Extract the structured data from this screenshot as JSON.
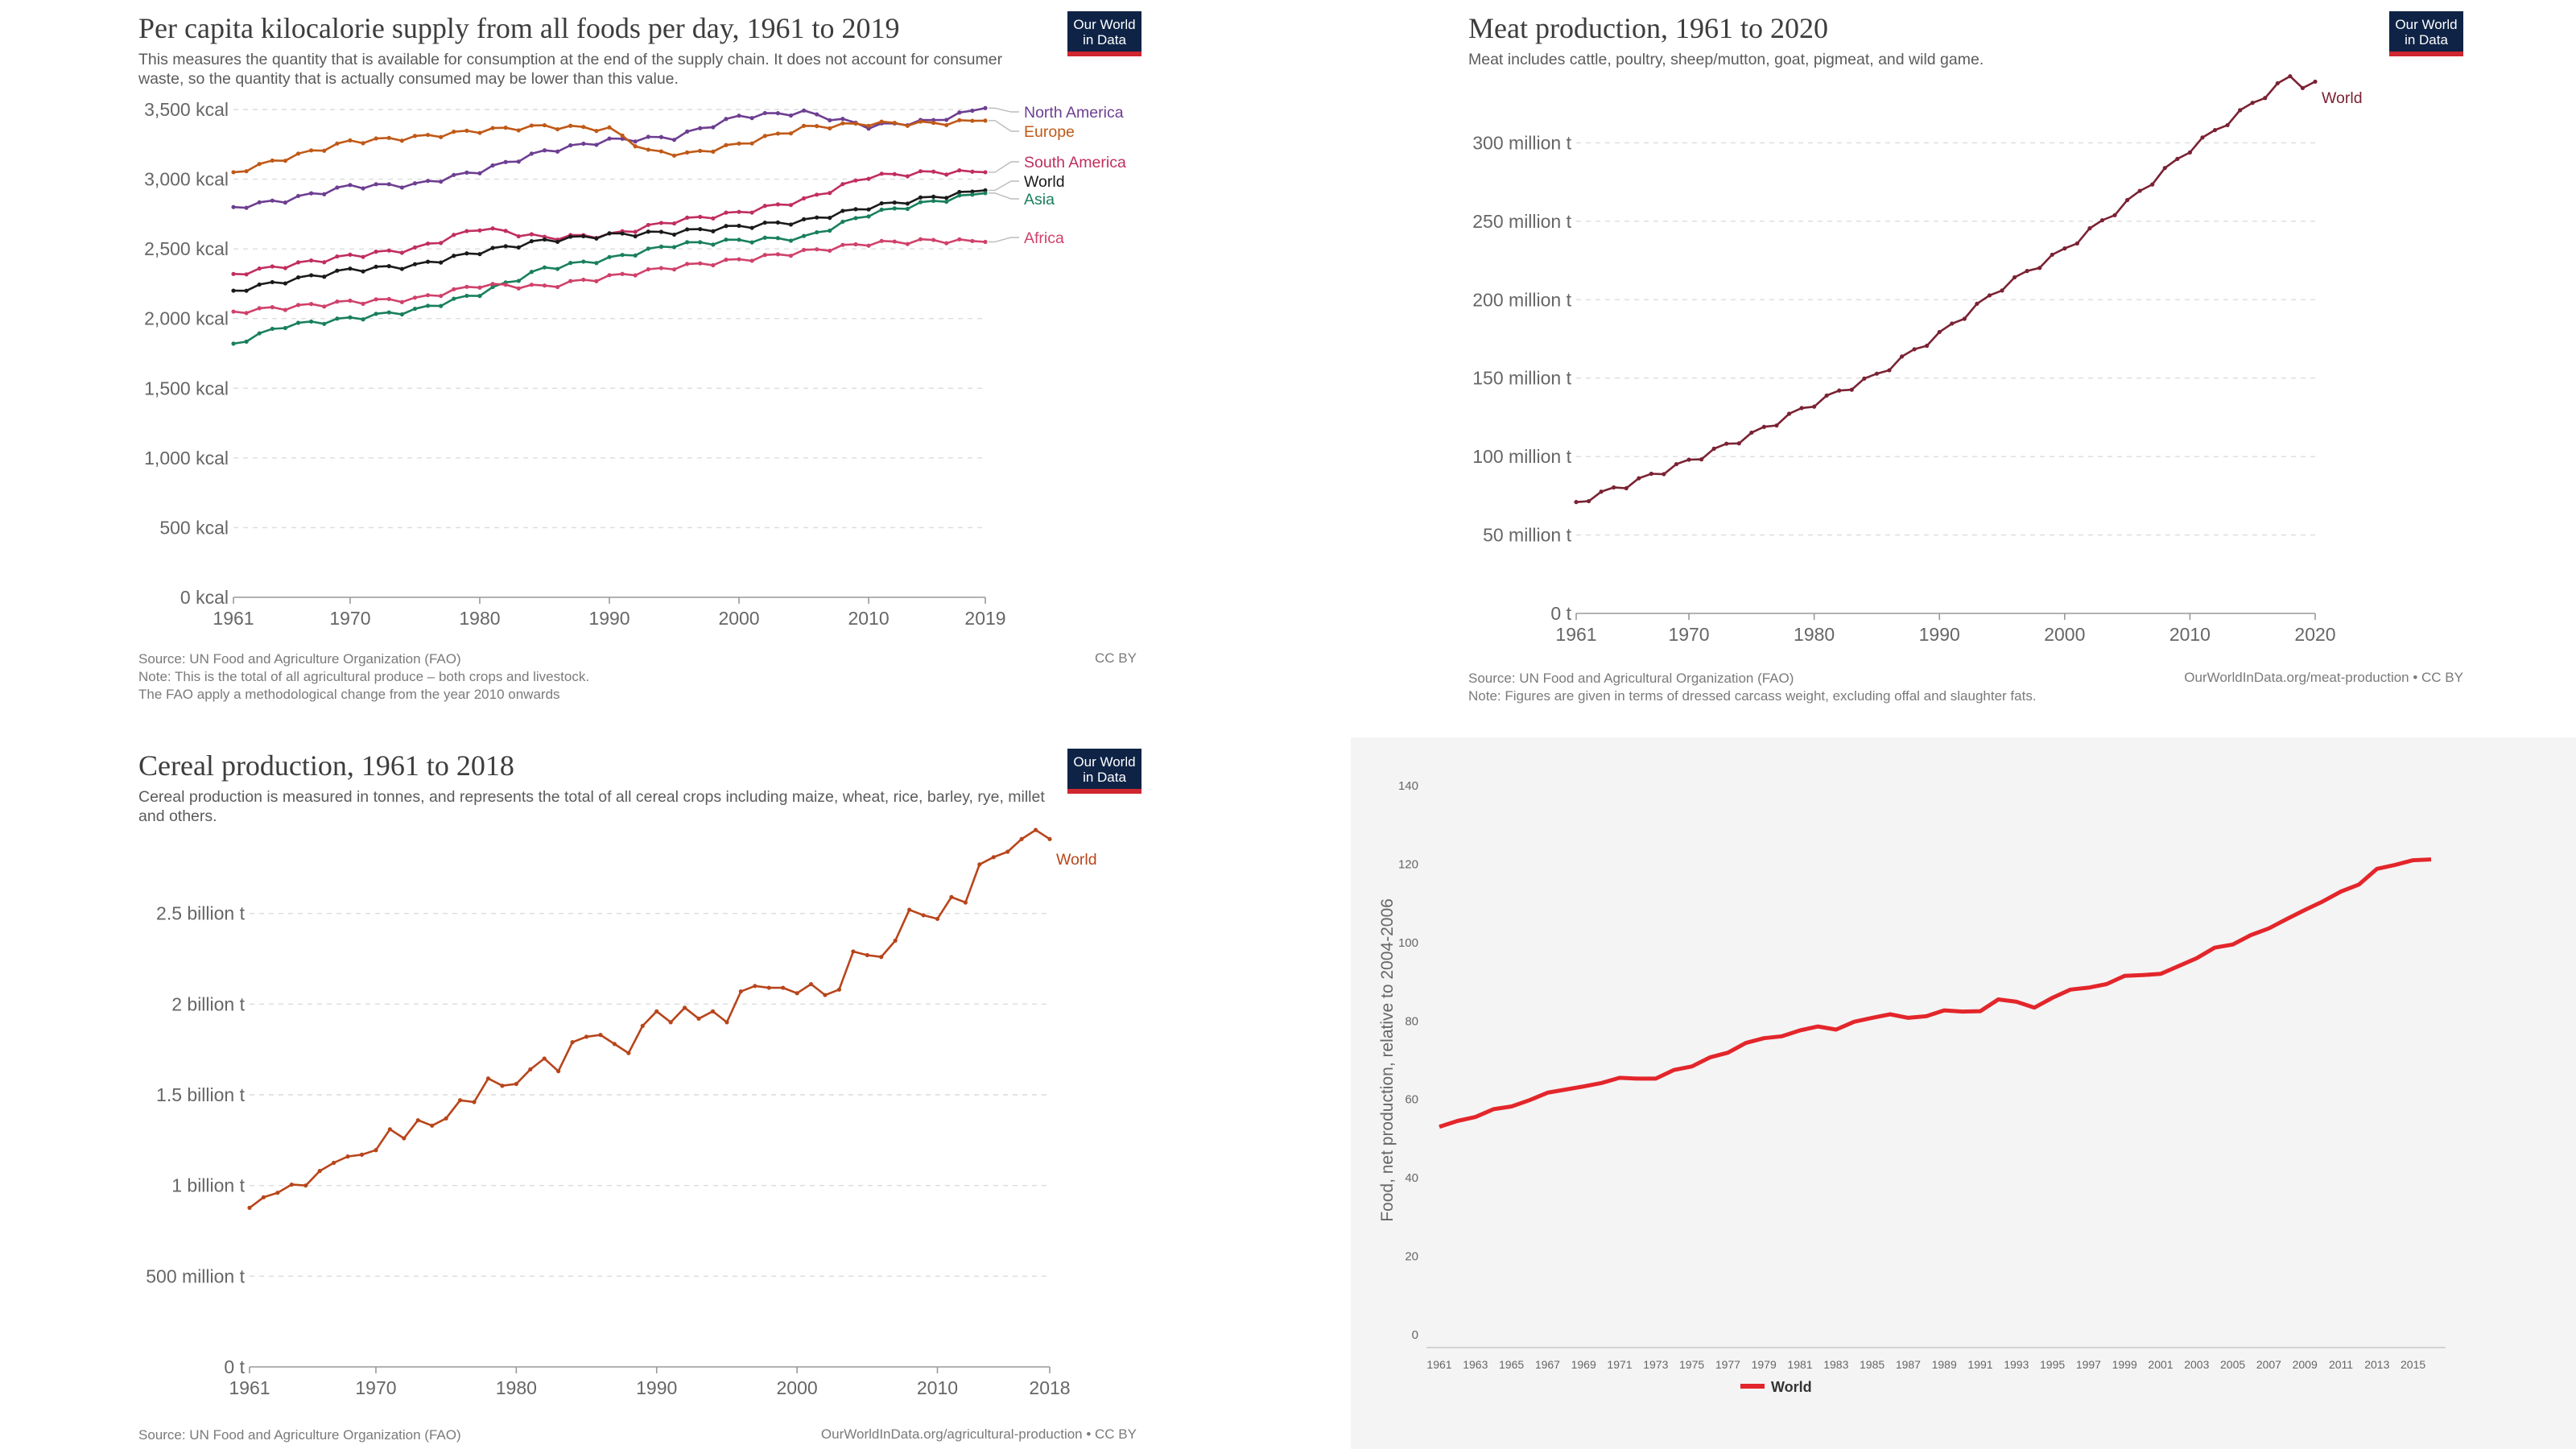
{
  "logo": {
    "line1": "Our World",
    "line2": "in Data"
  },
  "panels": {
    "kcal": {
      "title": "Per capita kilocalorie supply from all foods per day, 1961 to 2019",
      "subtitle": "This measures the quantity that is available for consumption at the end of the supply chain. It does not account for consumer waste, so the quantity that is actually consumed may be lower than this value.",
      "source": "Source: UN Food and Agriculture Organization (FAO)",
      "note1": "Note: This is the total of all agricultural produce – both crops and livestock.",
      "note2": "The FAO apply a methodological change from the year 2010 onwards",
      "license": "CC BY"
    },
    "meat": {
      "title": "Meat production, 1961 to 2020",
      "subtitle": "Meat includes cattle, poultry, sheep/mutton, goat, pigmeat, and wild game.",
      "source": "Source: UN Food and Agricultural Organization (FAO)",
      "note": "Note: Figures are given in terms of dressed carcass weight, excluding offal and slaughter fats.",
      "license": "OurWorldInData.org/meat-production • CC BY"
    },
    "cereal": {
      "title": "Cereal production, 1961 to 2018",
      "subtitle": "Cereal production is measured in tonnes, and represents the total of all cereal crops including maize, wheat, rice, barley, rye, millet and others.",
      "source": "Source: UN Food and Agriculture Organization (FAO)",
      "license": "OurWorldInData.org/agricultural-production • CC BY"
    }
  },
  "chart_data": [
    {
      "id": "kcal",
      "type": "line",
      "title": "Per capita kilocalorie supply from all foods per day, 1961 to 2019",
      "xlim": [
        1961,
        2019
      ],
      "ylim": [
        0,
        3500
      ],
      "x_ticks": [
        1961,
        1970,
        1980,
        1990,
        2000,
        2010,
        2019
      ],
      "y_ticks": [
        0,
        500,
        1000,
        1500,
        2000,
        2500,
        3000,
        3500
      ],
      "y_tick_labels": [
        "0 kcal",
        "500 kcal",
        "1,000 kcal",
        "1,500 kcal",
        "2,000 kcal",
        "2,500 kcal",
        "3,000 kcal",
        "3,500 kcal"
      ],
      "grid": true,
      "legend": "right-of-lines",
      "series": [
        {
          "name": "North America",
          "color": "#6d3e91",
          "anchors": [
            [
              1961,
              2800
            ],
            [
              1965,
              2850
            ],
            [
              1970,
              2950
            ],
            [
              1975,
              2960
            ],
            [
              1980,
              3060
            ],
            [
              1985,
              3200
            ],
            [
              1990,
              3280
            ],
            [
              1995,
              3300
            ],
            [
              2000,
              3450
            ],
            [
              2005,
              3480
            ],
            [
              2010,
              3380
            ],
            [
              2015,
              3420
            ],
            [
              2019,
              3510
            ]
          ]
        },
        {
          "name": "Europe",
          "color": "#c05917",
          "anchors": [
            [
              1961,
              3050
            ],
            [
              1965,
              3150
            ],
            [
              1970,
              3270
            ],
            [
              1975,
              3300
            ],
            [
              1980,
              3350
            ],
            [
              1985,
              3380
            ],
            [
              1990,
              3360
            ],
            [
              1993,
              3200
            ],
            [
              1996,
              3180
            ],
            [
              2000,
              3250
            ],
            [
              2005,
              3370
            ],
            [
              2010,
              3400
            ],
            [
              2015,
              3400
            ],
            [
              2019,
              3420
            ]
          ]
        },
        {
          "name": "South America",
          "color": "#c12e5d",
          "anchors": [
            [
              1961,
              2320
            ],
            [
              1965,
              2380
            ],
            [
              1970,
              2450
            ],
            [
              1975,
              2500
            ],
            [
              1980,
              2650
            ],
            [
              1985,
              2580
            ],
            [
              1990,
              2600
            ],
            [
              1995,
              2700
            ],
            [
              2000,
              2760
            ],
            [
              2005,
              2850
            ],
            [
              2010,
              3020
            ],
            [
              2015,
              3050
            ],
            [
              2019,
              3050
            ]
          ]
        },
        {
          "name": "World",
          "color": "#1a1a1a",
          "anchors": [
            [
              1961,
              2200
            ],
            [
              1965,
              2270
            ],
            [
              1970,
              2350
            ],
            [
              1975,
              2380
            ],
            [
              1980,
              2480
            ],
            [
              1985,
              2560
            ],
            [
              1990,
              2600
            ],
            [
              1995,
              2620
            ],
            [
              2000,
              2660
            ],
            [
              2005,
              2700
            ],
            [
              2010,
              2800
            ],
            [
              2015,
              2870
            ],
            [
              2019,
              2920
            ]
          ]
        },
        {
          "name": "Asia",
          "color": "#18805b",
          "anchors": [
            [
              1961,
              1820
            ],
            [
              1965,
              1950
            ],
            [
              1970,
              2000
            ],
            [
              1975,
              2060
            ],
            [
              1980,
              2180
            ],
            [
              1985,
              2360
            ],
            [
              1990,
              2430
            ],
            [
              1995,
              2530
            ],
            [
              2000,
              2560
            ],
            [
              2005,
              2580
            ],
            [
              2010,
              2750
            ],
            [
              2015,
              2840
            ],
            [
              2019,
              2900
            ]
          ]
        },
        {
          "name": "Africa",
          "color": "#d0416a",
          "anchors": [
            [
              1961,
              2050
            ],
            [
              1965,
              2080
            ],
            [
              1970,
              2120
            ],
            [
              1975,
              2140
            ],
            [
              1980,
              2240
            ],
            [
              1985,
              2230
            ],
            [
              1990,
              2300
            ],
            [
              1995,
              2370
            ],
            [
              2000,
              2420
            ],
            [
              2005,
              2480
            ],
            [
              2010,
              2540
            ],
            [
              2015,
              2560
            ],
            [
              2019,
              2550
            ]
          ]
        }
      ]
    },
    {
      "id": "meat",
      "type": "line",
      "title": "Meat production, 1961 to 2020",
      "xlim": [
        1961,
        2020
      ],
      "ylim": [
        0,
        350
      ],
      "x_ticks": [
        1961,
        1970,
        1980,
        1990,
        2000,
        2010,
        2020
      ],
      "y_ticks": [
        0,
        50,
        100,
        150,
        200,
        250,
        300
      ],
      "y_tick_labels": [
        "0 t",
        "50 million t",
        "100 million t",
        "150 million t",
        "200 million t",
        "250 million t",
        "300 million t"
      ],
      "grid": true,
      "legend": "end-of-line",
      "series": [
        {
          "name": "World",
          "color": "#7a2233",
          "anchors": [
            [
              1961,
              71
            ],
            [
              1965,
              82
            ],
            [
              1970,
              97
            ],
            [
              1975,
              114
            ],
            [
              1980,
              134
            ],
            [
              1985,
              152
            ],
            [
              1990,
              178
            ],
            [
              1995,
              208
            ],
            [
              2000,
              232
            ],
            [
              2005,
              262
            ],
            [
              2010,
              296
            ],
            [
              2015,
              325
            ],
            [
              2018,
              342
            ],
            [
              2019,
              337
            ],
            [
              2020,
              339
            ]
          ]
        }
      ]
    },
    {
      "id": "cereal",
      "type": "line",
      "title": "Cereal production, 1961 to 2018",
      "xlim": [
        1961,
        2018
      ],
      "ylim": [
        0,
        3000
      ],
      "x_ticks": [
        1961,
        1970,
        1980,
        1990,
        2000,
        2010,
        2018
      ],
      "y_ticks": [
        0,
        500,
        1000,
        1500,
        2000,
        2500
      ],
      "y_tick_labels": [
        "0 t",
        "500 million t",
        "1 billion t",
        "1.5 billion t",
        "2 billion t",
        "2.5 billion t"
      ],
      "grid": true,
      "legend": "end-of-line",
      "series": [
        {
          "name": "World",
          "color": "#b8451b",
          "values": [
            877,
            935,
            960,
            1005,
            1000,
            1080,
            1125,
            1160,
            1170,
            1195,
            1310,
            1260,
            1360,
            1330,
            1370,
            1470,
            1460,
            1590,
            1550,
            1560,
            1640,
            1700,
            1630,
            1790,
            1820,
            1830,
            1780,
            1730,
            1880,
            1960,
            1900,
            1980,
            1920,
            1960,
            1900,
            2070,
            2100,
            2090,
            2090,
            2060,
            2110,
            2050,
            2080,
            2290,
            2270,
            2260,
            2350,
            2520,
            2490,
            2470,
            2590,
            2560,
            2770,
            2810,
            2840,
            2910,
            2960,
            2910
          ]
        }
      ]
    },
    {
      "id": "food-index",
      "type": "line",
      "ylabel": "Food, net production, relative to 2004-2006",
      "xlim": [
        1961,
        2016
      ],
      "ylim": [
        0,
        140
      ],
      "x_ticks": [
        1961,
        1963,
        1965,
        1967,
        1969,
        1971,
        1973,
        1975,
        1977,
        1979,
        1981,
        1983,
        1985,
        1987,
        1989,
        1991,
        1993,
        1995,
        1997,
        1999,
        2001,
        2003,
        2005,
        2007,
        2009,
        2011,
        2013,
        2015
      ],
      "y_ticks": [
        0,
        20,
        40,
        60,
        80,
        100,
        120,
        140
      ],
      "grid": false,
      "legend": "bottom-center",
      "series": [
        {
          "name": "World",
          "color": "#e3262b",
          "values": [
            53,
            54.5,
            55.5,
            57.5,
            58.2,
            59.8,
            61.7,
            62.5,
            63.3,
            64.2,
            65.5,
            65.3,
            65.3,
            67.5,
            68.4,
            70.7,
            71.9,
            74.4,
            75.6,
            76.1,
            77.6,
            78.6,
            77.8,
            79.8,
            80.8,
            81.7,
            80.8,
            81.2,
            82.7,
            82.4,
            82.5,
            85.5,
            84.9,
            83.4,
            85.9,
            88,
            88.5,
            89.4,
            91.5,
            91.7,
            92,
            94,
            96,
            98.7,
            99.5,
            101.9,
            103.6,
            106,
            108.3,
            110.5,
            113,
            114.8,
            118.8,
            119.8,
            121,
            121.2
          ]
        }
      ]
    }
  ]
}
